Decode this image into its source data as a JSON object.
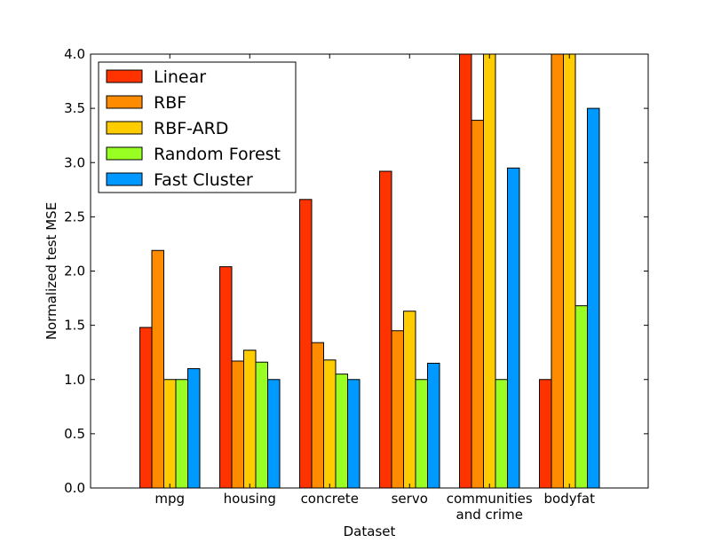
{
  "chart_data": {
    "type": "bar",
    "title": "",
    "xlabel": "Dataset",
    "ylabel": "Normalized test MSE",
    "ylim": [
      0,
      4.0
    ],
    "yticks": [
      0.0,
      0.5,
      1.0,
      1.5,
      2.0,
      2.5,
      3.0,
      3.5,
      4.0
    ],
    "ytick_labels": [
      "0.0",
      "0.5",
      "1.0",
      "1.5",
      "2.0",
      "2.5",
      "3.0",
      "3.5",
      "4.0"
    ],
    "categories": [
      [
        "mpg"
      ],
      [
        "housing"
      ],
      [
        "concrete"
      ],
      [
        "servo"
      ],
      [
        "communities",
        "and crime"
      ],
      [
        "bodyfat"
      ]
    ],
    "series": [
      {
        "name": "Linear",
        "color": "#ff3300",
        "values": [
          1.48,
          2.04,
          2.66,
          2.92,
          4.0,
          1.0
        ]
      },
      {
        "name": "RBF",
        "color": "#ff8c00",
        "values": [
          2.19,
          1.17,
          1.34,
          1.45,
          3.39,
          4.0
        ]
      },
      {
        "name": "RBF-ARD",
        "color": "#ffcc00",
        "values": [
          1.0,
          1.27,
          1.18,
          1.63,
          4.0,
          4.0
        ]
      },
      {
        "name": "Random Forest",
        "color": "#99ff22",
        "values": [
          1.0,
          1.16,
          1.05,
          1.0,
          1.0,
          1.68
        ]
      },
      {
        "name": "Fast Cluster",
        "color": "#0099ff",
        "values": [
          1.1,
          1.0,
          1.0,
          1.15,
          2.95,
          3.5
        ]
      }
    ],
    "legend_position": "top-left",
    "grid": false
  }
}
